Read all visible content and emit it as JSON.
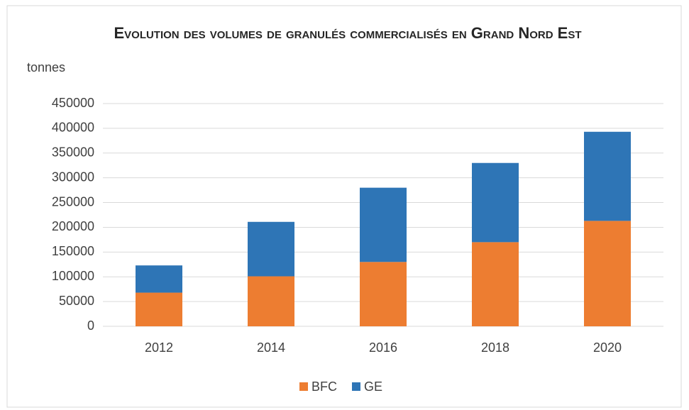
{
  "chart_data": {
    "type": "stacked-bar",
    "title": "Evolution des volumes de granulés commercialisés en Grand Nord Est",
    "y_label": "tonnes",
    "categories": [
      "2012",
      "2014",
      "2016",
      "2018",
      "2020"
    ],
    "series": [
      {
        "name": "BFC",
        "color": "#ed7d31",
        "values": [
          68000,
          101000,
          130000,
          170000,
          213000
        ]
      },
      {
        "name": "GE",
        "color": "#2e75b6",
        "values": [
          55000,
          110000,
          150000,
          160000,
          180000
        ]
      }
    ],
    "ylim": [
      0,
      450000
    ],
    "yticks": [
      0,
      50000,
      100000,
      150000,
      200000,
      250000,
      300000,
      350000,
      400000,
      450000
    ],
    "grid": true,
    "legend": "bottom"
  }
}
